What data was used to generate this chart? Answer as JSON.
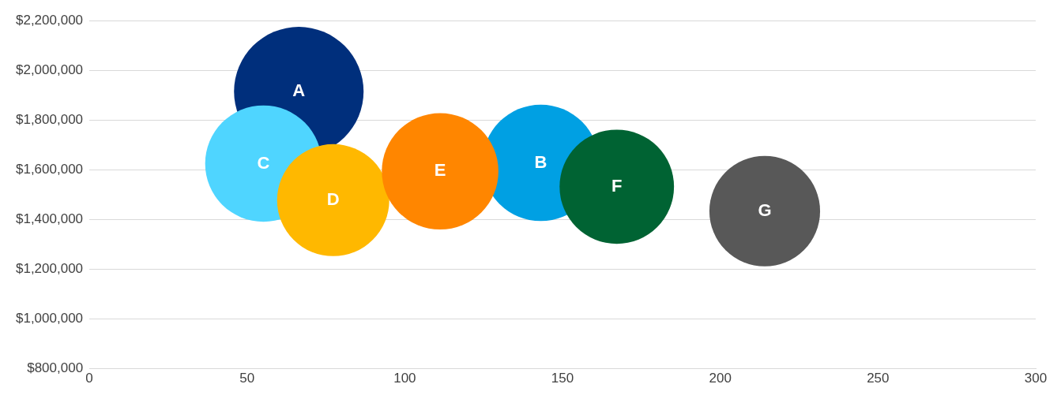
{
  "chart_data": {
    "type": "bubble",
    "series": [
      {
        "name": "A",
        "color": "#002f7c",
        "x": [
          66.4
        ],
        "values": [
          1915000
        ],
        "sizes": [
          1
        ]
      },
      {
        "name": "B",
        "color": "#00a0e3",
        "x": [
          143.1
        ],
        "values": [
          1628000
        ],
        "sizes": [
          0.81
        ]
      },
      {
        "name": "C",
        "color": "#4fd5ff",
        "x": [
          55.2
        ],
        "values": [
          1625000
        ],
        "sizes": [
          0.81
        ]
      },
      {
        "name": "D",
        "color": "#ffb800",
        "x": [
          77.3
        ],
        "values": [
          1478000
        ],
        "sizes": [
          0.75
        ]
      },
      {
        "name": "E",
        "color": "#ff8600",
        "x": [
          111.2
        ],
        "values": [
          1594000
        ],
        "sizes": [
          0.81
        ]
      },
      {
        "name": "F",
        "color": "#006333",
        "x": [
          167.2
        ],
        "values": [
          1532000
        ],
        "sizes": [
          0.78
        ]
      },
      {
        "name": "G",
        "color": "#585858",
        "x": [
          214.1
        ],
        "values": [
          1434000
        ],
        "sizes": [
          0.73
        ]
      }
    ],
    "xlim": [
      0,
      300
    ],
    "xticks": [
      0,
      50,
      100,
      150,
      200,
      250,
      300
    ],
    "ylim": [
      800000,
      2200000
    ],
    "yticks": [
      {
        "value": 800000,
        "label": "$800,000"
      },
      {
        "value": 1000000,
        "label": "$1,000,000"
      },
      {
        "value": 1200000,
        "label": "$1,200,000"
      },
      {
        "value": 1400000,
        "label": "$1,400,000"
      },
      {
        "value": 1600000,
        "label": "$1,600,000"
      },
      {
        "value": 1800000,
        "label": "$1,800,000"
      },
      {
        "value": 2000000,
        "label": "$2,000,000"
      },
      {
        "value": 2200000,
        "label": "$2,200,000"
      }
    ],
    "grid": "y",
    "legend": false
  }
}
